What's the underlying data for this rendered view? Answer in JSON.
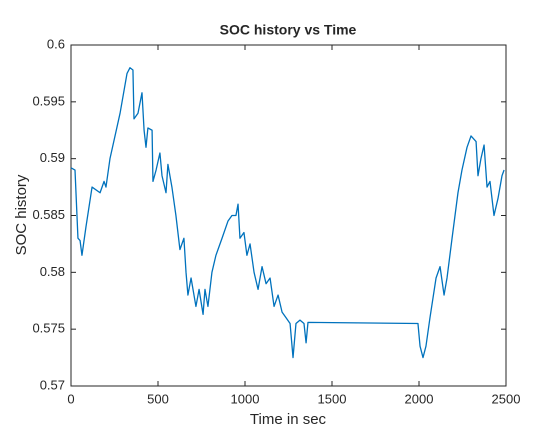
{
  "chart_data": {
    "type": "line",
    "title": "SOC history vs Time",
    "x_label": "Time in sec",
    "y_label": "SOC history",
    "x": [
      0,
      23,
      40,
      52,
      63,
      86,
      121,
      167,
      190,
      201,
      224,
      282,
      322,
      339,
      356,
      362,
      385,
      408,
      420,
      431,
      442,
      466,
      471,
      489,
      511,
      523,
      546,
      557,
      580,
      603,
      626,
      649,
      661,
      672,
      690,
      718,
      736,
      759,
      770,
      787,
      810,
      833,
      868,
      902,
      925,
      948,
      960,
      971,
      994,
      1011,
      1029,
      1052,
      1075,
      1098,
      1121,
      1144,
      1167,
      1190,
      1213,
      1236,
      1259,
      1276,
      1293,
      1316,
      1339,
      1351,
      1362,
      1994,
      2006,
      2023,
      2040,
      2063,
      2098,
      2121,
      2144,
      2161,
      2190,
      2224,
      2247,
      2276,
      2299,
      2328,
      2339,
      2356,
      2374,
      2391,
      2408,
      2431,
      2454,
      2477,
      2489
    ],
    "series": [
      {
        "name": "SOC",
        "color": "#0072bd",
        "values": [
          0.5892,
          0.589,
          0.583,
          0.5828,
          0.5815,
          0.584,
          0.5875,
          0.587,
          0.588,
          0.5875,
          0.59,
          0.594,
          0.5975,
          0.598,
          0.5978,
          0.5935,
          0.594,
          0.5958,
          0.5925,
          0.591,
          0.5927,
          0.5925,
          0.588,
          0.589,
          0.5905,
          0.5885,
          0.587,
          0.5895,
          0.5875,
          0.585,
          0.582,
          0.583,
          0.58,
          0.578,
          0.5795,
          0.577,
          0.5785,
          0.5763,
          0.5785,
          0.577,
          0.58,
          0.5815,
          0.583,
          0.5845,
          0.585,
          0.585,
          0.586,
          0.583,
          0.5835,
          0.5815,
          0.5825,
          0.58,
          0.5785,
          0.5805,
          0.579,
          0.5795,
          0.577,
          0.578,
          0.5765,
          0.576,
          0.5755,
          0.5725,
          0.5755,
          0.5758,
          0.5755,
          0.5738,
          0.5756,
          0.5755,
          0.5735,
          0.5725,
          0.5735,
          0.576,
          0.5795,
          0.5805,
          0.578,
          0.5795,
          0.583,
          0.587,
          0.589,
          0.591,
          0.592,
          0.5915,
          0.5885,
          0.59,
          0.5912,
          0.5875,
          0.588,
          0.585,
          0.5865,
          0.5885,
          0.589
        ]
      }
    ],
    "xlim": [
      0,
      2500
    ],
    "xticks": [
      0,
      500,
      1000,
      1500,
      2000,
      2500
    ],
    "ylim": [
      0.57,
      0.6
    ],
    "yticks": [
      0.57,
      0.575,
      0.58,
      0.585,
      0.59,
      0.595,
      0.6
    ],
    "grid": false
  }
}
